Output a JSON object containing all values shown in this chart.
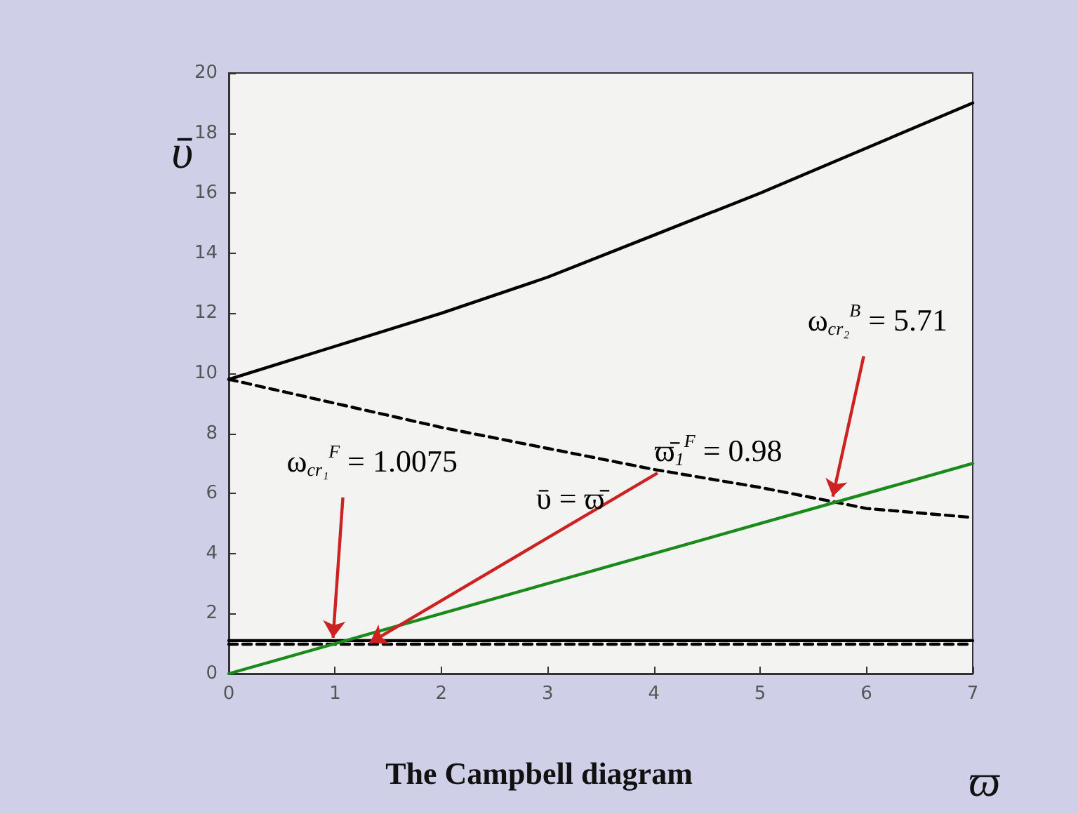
{
  "chart_data": {
    "type": "line",
    "title": "The Campbell diagram",
    "xlabel": "ϖ",
    "ylabel": "ῡ",
    "xlim": [
      0,
      7
    ],
    "xticks": [
      0,
      1,
      2,
      3,
      4,
      5,
      6,
      7
    ],
    "ylim": [
      0,
      20
    ],
    "yticks": [
      0,
      2,
      4,
      6,
      8,
      10,
      12,
      14,
      16,
      18,
      20
    ],
    "grid": false,
    "marker": "none",
    "series": [
      {
        "color": "#000000",
        "line_style": "solid",
        "x": [
          0,
          1,
          2,
          3,
          4,
          5,
          6,
          7
        ],
        "values": [
          9.8,
          10.9,
          12.0,
          13.2,
          14.6,
          16.0,
          17.5,
          19.0
        ]
      },
      {
        "color": "#000000",
        "line_style": "dashed",
        "x": [
          0,
          1,
          2,
          3,
          4,
          5,
          5.71,
          6,
          7
        ],
        "values": [
          9.8,
          9.0,
          8.2,
          7.5,
          6.8,
          6.2,
          5.71,
          5.5,
          5.2
        ]
      },
      {
        "color": "#000000",
        "line_style": "solid",
        "x": [
          0,
          7
        ],
        "values": [
          1.1,
          1.1
        ]
      },
      {
        "color": "#000000",
        "line_style": "dashed",
        "x": [
          0,
          7
        ],
        "values": [
          0.98,
          0.98
        ]
      },
      {
        "color": "#1a8a1a",
        "line_style": "solid",
        "x": [
          0,
          7
        ],
        "values": [
          0,
          7
        ]
      }
    ],
    "annotations": [
      {
        "text": "ω$_{cr₂}$$^{B}$ = 5.71",
        "x": 5.71,
        "y": 5.71
      },
      {
        "text": "ω$_{cr₁}$$^{F}$ = 1.0075",
        "x": 1.0075,
        "y": 1.0075
      },
      "ῡ = ϖ̄",
      {
        "text": "ϖ̄$_{1}$$^{F}$ = 0.98",
        "x": 1.3,
        "y": 0.98
      }
    ]
  }
}
